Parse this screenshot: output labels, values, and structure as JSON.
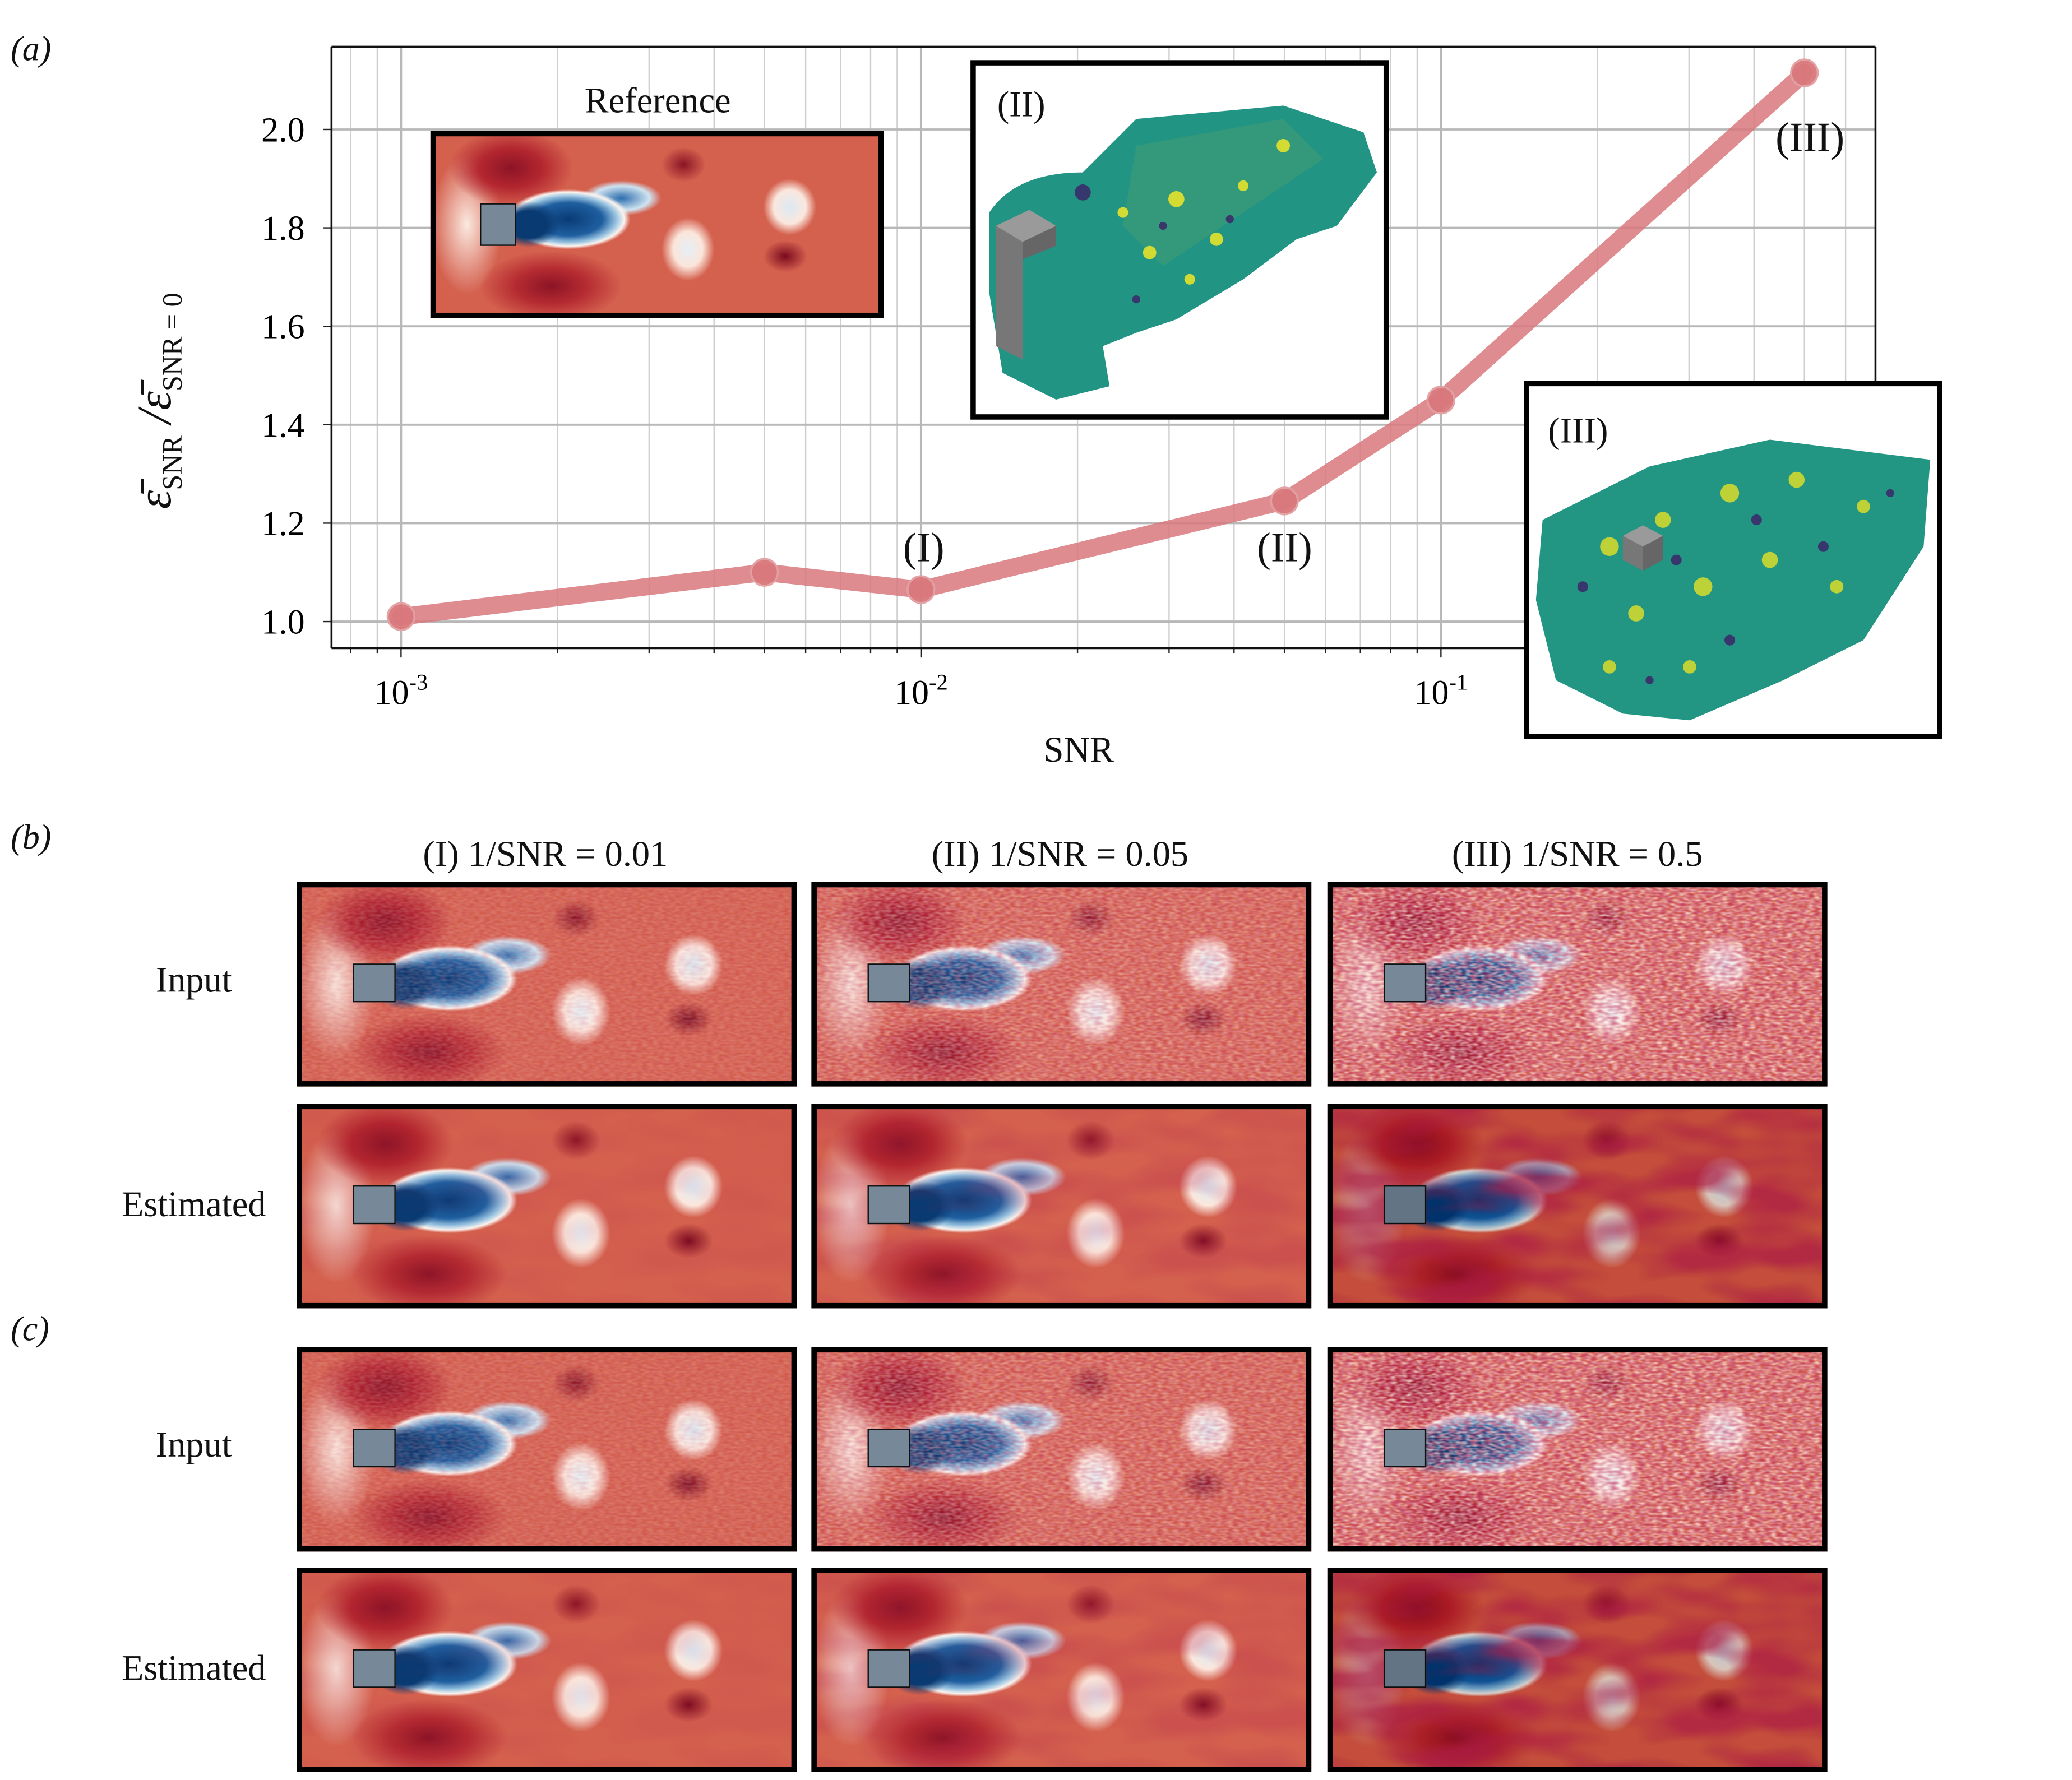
{
  "panel_labels": {
    "a": "(a)",
    "b": "(b)",
    "c": "(c)"
  },
  "chart_data": {
    "type": "line",
    "xscale": "log",
    "x": [
      0.001,
      0.005,
      0.01,
      0.05,
      0.1,
      0.5
    ],
    "values": [
      1.01,
      1.1,
      1.065,
      1.245,
      1.45,
      2.115
    ],
    "xlabel": "SNR",
    "ylabel_main": "ε̄",
    "ylabel_sub1": "SNR",
    "ylabel_mid": " /ε̄",
    "ylabel_sub2": "SNR = 0",
    "xlim": [
      0.000735,
      0.685
    ],
    "ylim": [
      0.946,
      2.168
    ],
    "xticks": [
      {
        "value": 0.001,
        "base": "10",
        "exp": "-3"
      },
      {
        "value": 0.01,
        "base": "10",
        "exp": "-2"
      },
      {
        "value": 0.1,
        "base": "10",
        "exp": "-1"
      }
    ],
    "yticks": [
      1.0,
      1.2,
      1.4,
      1.6,
      1.8,
      2.0
    ],
    "ytick_labels": [
      "1.0",
      "1.2",
      "1.4",
      "1.6",
      "1.8",
      "2.0"
    ],
    "grid": true,
    "line_color": "#d9787c",
    "annotations": [
      {
        "text": "(I)",
        "x": 0.01
      },
      {
        "text": "(II)",
        "x": 0.05
      },
      {
        "text": "(III)",
        "x": 0.5
      }
    ],
    "insets": {
      "reference": "Reference",
      "ii": "(II)",
      "iii": "(III)"
    }
  },
  "grid_b": {
    "column_titles": [
      "(I) 1/SNR = 0.01",
      "(II) 1/SNR = 0.05",
      "(III) 1/SNR = 0.5"
    ],
    "row_labels": [
      "Input",
      "Estimated"
    ]
  },
  "grid_c": {
    "row_labels": [
      "Input",
      "Estimated"
    ]
  }
}
